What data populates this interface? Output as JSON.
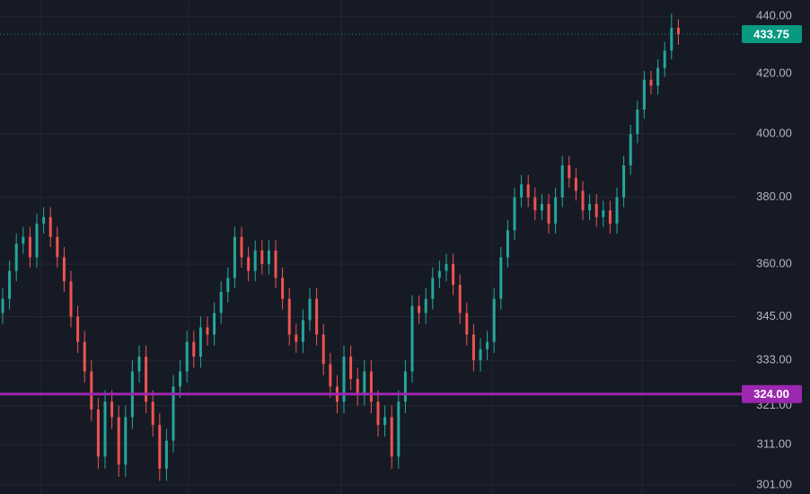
{
  "chart_data": {
    "type": "candlestick",
    "log_scale": true,
    "grid": true,
    "up_color": "#26a69a",
    "down_color": "#ef5350",
    "ylim": [
      298.8,
      445.9
    ],
    "yticks": [
      {
        "value": 440,
        "label": "440.00"
      },
      {
        "value": 420,
        "label": "420.00"
      },
      {
        "value": 400,
        "label": "400.00"
      },
      {
        "value": 380,
        "label": "380.00"
      },
      {
        "value": 360,
        "label": "360.00"
      },
      {
        "value": 345,
        "label": "345.00"
      },
      {
        "value": 333,
        "label": "333.00"
      },
      {
        "value": 321,
        "label": "321.00"
      },
      {
        "value": 311,
        "label": "311.00"
      },
      {
        "value": 301,
        "label": "301.00"
      }
    ],
    "last_price": {
      "value": 433.75,
      "label": "433.75",
      "color": "#089981"
    },
    "level": {
      "value": 324,
      "label": "324.00",
      "color": "#9c27b0"
    },
    "open": [
      346,
      350,
      358,
      366,
      368,
      362,
      372,
      374,
      368,
      362,
      355,
      345,
      338,
      330,
      320,
      308,
      322,
      318,
      306,
      318,
      330,
      334,
      322,
      316,
      305,
      312,
      326,
      330,
      338,
      334,
      342,
      340,
      346,
      352,
      356,
      368,
      362,
      358,
      364,
      360,
      364,
      356,
      350,
      340,
      338,
      344,
      350,
      340,
      332,
      326,
      322,
      334,
      328,
      324,
      330,
      322,
      316,
      318,
      308,
      322,
      330,
      348,
      346,
      350,
      356,
      358,
      360,
      354,
      346,
      340,
      333,
      336,
      338,
      350,
      362,
      370,
      380,
      384,
      380,
      376,
      378,
      372,
      380,
      390,
      386,
      382,
      376,
      378,
      374,
      376,
      372,
      380,
      390,
      400,
      408,
      418,
      416,
      422,
      428,
      436
    ],
    "high": [
      353,
      361,
      369,
      371,
      371,
      375,
      377,
      377,
      371,
      365,
      358,
      348,
      341,
      333,
      323,
      325,
      325,
      321,
      321,
      333,
      337,
      337,
      325,
      319,
      315,
      329,
      333,
      341,
      341,
      345,
      345,
      349,
      355,
      359,
      371,
      371,
      365,
      367,
      367,
      367,
      367,
      359,
      353,
      343,
      347,
      353,
      353,
      343,
      335,
      329,
      337,
      337,
      331,
      333,
      333,
      325,
      321,
      321,
      325,
      333,
      351,
      351,
      353,
      359,
      361,
      363,
      363,
      357,
      349,
      343,
      339,
      341,
      353,
      365,
      373,
      383,
      387,
      387,
      383,
      381,
      381,
      383,
      393,
      393,
      389,
      385,
      381,
      381,
      379,
      379,
      383,
      393,
      403,
      411,
      421,
      421,
      425,
      431,
      441,
      439
    ],
    "low": [
      343,
      347,
      355,
      363,
      359,
      359,
      369,
      365,
      359,
      352,
      342,
      335,
      327,
      317,
      305,
      305,
      315,
      303,
      303,
      315,
      327,
      319,
      313,
      302,
      302,
      309,
      323,
      327,
      331,
      331,
      337,
      337,
      343,
      349,
      353,
      359,
      355,
      355,
      357,
      357,
      353,
      347,
      337,
      335,
      335,
      341,
      337,
      329,
      323,
      319,
      319,
      325,
      321,
      321,
      319,
      313,
      313,
      305,
      305,
      319,
      327,
      343,
      343,
      347,
      353,
      355,
      351,
      343,
      337,
      330,
      330,
      333,
      335,
      347,
      359,
      367,
      377,
      377,
      373,
      373,
      369,
      369,
      377,
      383,
      379,
      373,
      373,
      371,
      371,
      369,
      369,
      377,
      387,
      397,
      405,
      413,
      413,
      419,
      425,
      430
    ],
    "close": [
      350,
      358,
      366,
      368,
      362,
      372,
      374,
      368,
      362,
      355,
      345,
      338,
      330,
      320,
      308,
      322,
      318,
      306,
      318,
      330,
      334,
      322,
      316,
      305,
      312,
      326,
      330,
      338,
      334,
      342,
      340,
      346,
      352,
      356,
      368,
      362,
      358,
      364,
      360,
      364,
      356,
      350,
      340,
      338,
      344,
      350,
      340,
      332,
      326,
      322,
      334,
      328,
      324,
      330,
      322,
      316,
      318,
      308,
      322,
      330,
      348,
      346,
      350,
      356,
      358,
      360,
      354,
      346,
      340,
      333,
      336,
      338,
      350,
      362,
      370,
      380,
      384,
      380,
      376,
      378,
      372,
      380,
      390,
      386,
      382,
      376,
      378,
      374,
      376,
      372,
      380,
      390,
      400,
      408,
      418,
      416,
      422,
      428,
      436,
      433.75
    ]
  }
}
